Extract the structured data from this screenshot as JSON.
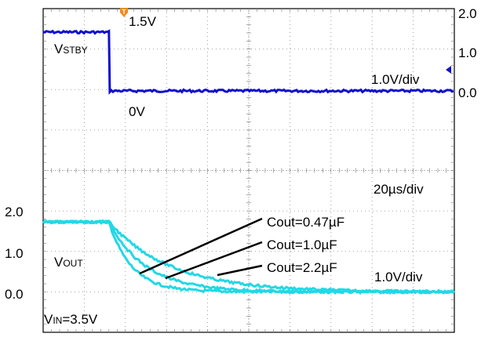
{
  "chart_data": {
    "type": "line",
    "time_per_div": "20µs/div",
    "channels": [
      {
        "name": "VSTBY",
        "name_main": "V",
        "name_sub": "STBY",
        "color": "#1010cc",
        "volts_per_div": "1.0V/div",
        "scale_ticks": [
          "2.0",
          "1.0",
          "0.0"
        ],
        "level_labels": {
          "high": "1.5V",
          "low": "0V"
        },
        "divisions_from_left": [
          0,
          1.6,
          1.62,
          10
        ],
        "values_v": [
          1.5,
          1.5,
          0.0,
          0.0
        ]
      },
      {
        "name": "VOUT",
        "name_main": "V",
        "name_sub": "OUT",
        "color": "#22d8e6",
        "volts_per_div": "1.0V/div",
        "scale_ticks": [
          "2.0",
          "1.0",
          "0.0"
        ],
        "condition": {
          "main": "V",
          "sub": "IN",
          "rest": "=3.5V"
        },
        "start_v": 1.8,
        "final_v": 0.05,
        "fall_start_div": 1.6,
        "series": [
          {
            "name": "Cout=0.47µF",
            "fall_time_div": 0.55
          },
          {
            "name": "Cout=1.0µF",
            "fall_time_div": 0.9
          },
          {
            "name": "Cout=2.2µF",
            "fall_time_div": 1.5
          }
        ]
      }
    ],
    "trigger_marker": "T",
    "grid": true
  }
}
